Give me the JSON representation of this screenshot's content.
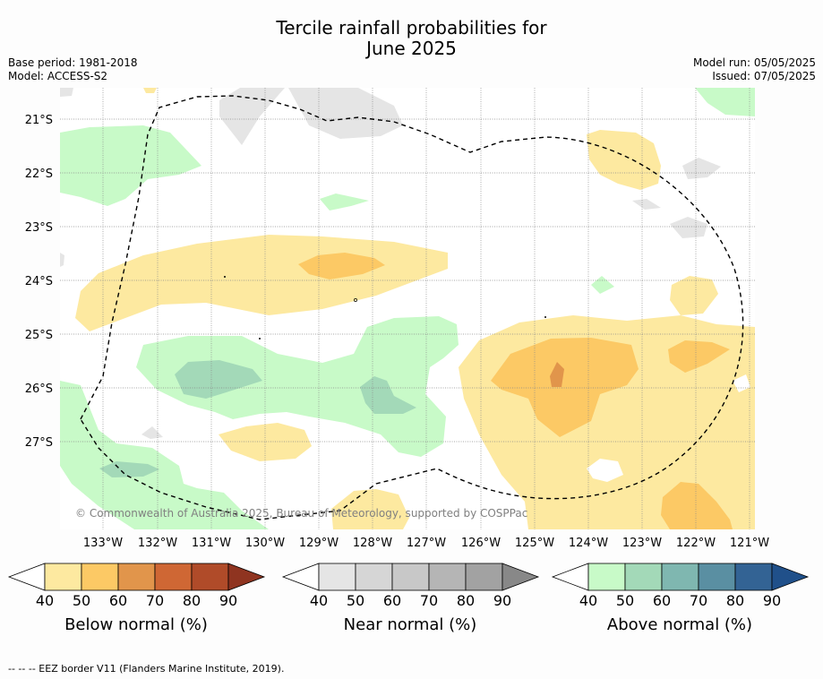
{
  "title_line1": "Tercile rainfall probabilities for",
  "title_line2": "June 2025",
  "base_period": "Base period: 1981-2018",
  "model": "Model: ACCESS-S2",
  "model_run": "Model run: 05/05/2025",
  "issued": "Issued: 07/05/2025",
  "copyright": "© Commonwealth of Australia 2025, Bureau of Meteorology, supported by COSPPac",
  "lat_labels": [
    "21°S",
    "22°S",
    "23°S",
    "24°S",
    "25°S",
    "26°S",
    "27°S"
  ],
  "lon_labels": [
    "133°W",
    "132°W",
    "131°W",
    "130°W",
    "129°W",
    "128°W",
    "127°W",
    "126°W",
    "125°W",
    "124°W",
    "123°W",
    "122°W",
    "121°W"
  ],
  "colorbars": [
    {
      "label": "Below normal (%)",
      "colors": [
        "#fde9a0",
        "#fcc965",
        "#e1954b",
        "#cf6734",
        "#b04b29",
        "#8f3420"
      ]
    },
    {
      "label": "Near normal (%)",
      "colors": [
        "#e5e5e5",
        "#d6d6d6",
        "#c8c8c8",
        "#b5b5b5",
        "#a2a2a2",
        "#888888"
      ]
    },
    {
      "label": "Above normal (%)",
      "colors": [
        "#c8fac8",
        "#a3d9b8",
        "#7fb7b0",
        "#5a8fa2",
        "#336394",
        "#20508a"
      ]
    }
  ],
  "tick_values": [
    "40",
    "50",
    "60",
    "70",
    "80",
    "90"
  ],
  "footnote": "--  --  -- EEZ border V11 (Flanders Marine Institute, 2019)."
}
